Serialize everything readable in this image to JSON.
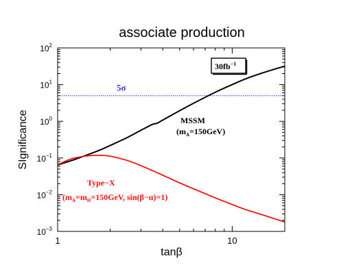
{
  "chart_data": {
    "type": "line",
    "title": "associate production",
    "xlabel": "tanβ",
    "ylabel": "SIgnificance",
    "x_scale": "log",
    "y_scale": "log",
    "xlim": [
      1,
      20
    ],
    "ylim": [
      0.001,
      100
    ],
    "x_ticks": [
      {
        "value": 1,
        "label": "1"
      },
      {
        "value": 10,
        "label": "10"
      }
    ],
    "y_ticks": [
      {
        "value": 0.001,
        "base": "10",
        "exp": "−3"
      },
      {
        "value": 0.01,
        "base": "10",
        "exp": "−2"
      },
      {
        "value": 0.1,
        "base": "10",
        "exp": "−1"
      },
      {
        "value": 1,
        "base": "10",
        "exp": "0"
      },
      {
        "value": 10,
        "base": "10",
        "exp": "1"
      },
      {
        "value": 100,
        "base": "10",
        "exp": "2"
      }
    ],
    "grid": false,
    "luminosity_box": {
      "main": "30fb",
      "sup": "−1"
    },
    "threshold": {
      "value": 5,
      "label": "5σ",
      "color": "#3333cc"
    },
    "series": [
      {
        "key": "mssm",
        "color": "#000000",
        "label_line1": "MSSM",
        "label_line2": {
          "pre": "(m",
          "sub": "A",
          "post": "=150GeV)"
        },
        "x": [
          1,
          1.2,
          1.5,
          1.8,
          2.0,
          2.5,
          3.0,
          3.5,
          3.7,
          4.0,
          5.0,
          6.0,
          8.0,
          10.0,
          12.0,
          15.0,
          20.0
        ],
        "y": [
          0.065,
          0.085,
          0.125,
          0.175,
          0.22,
          0.36,
          0.57,
          0.83,
          0.88,
          1.08,
          1.95,
          3.1,
          6.2,
          10.0,
          14.5,
          21.0,
          32.0
        ]
      },
      {
        "key": "typex",
        "color": "#ee1111",
        "label_line1": "Type−X",
        "label_line2": {
          "pre": "(m",
          "sub1": "A",
          "mid": "=m",
          "sub2": "H",
          "post": "=150GeV, sin(β−α)=1)"
        },
        "x": [
          1,
          1.2,
          1.5,
          1.8,
          2.0,
          2.5,
          3.0,
          4.0,
          5.0,
          6.0,
          8.0,
          10.0,
          12.0,
          15.0,
          20.0
        ],
        "y": [
          0.065,
          0.095,
          0.115,
          0.118,
          0.112,
          0.086,
          0.062,
          0.034,
          0.021,
          0.0145,
          0.0082,
          0.0054,
          0.0039,
          0.0028,
          0.0018
        ]
      }
    ]
  }
}
